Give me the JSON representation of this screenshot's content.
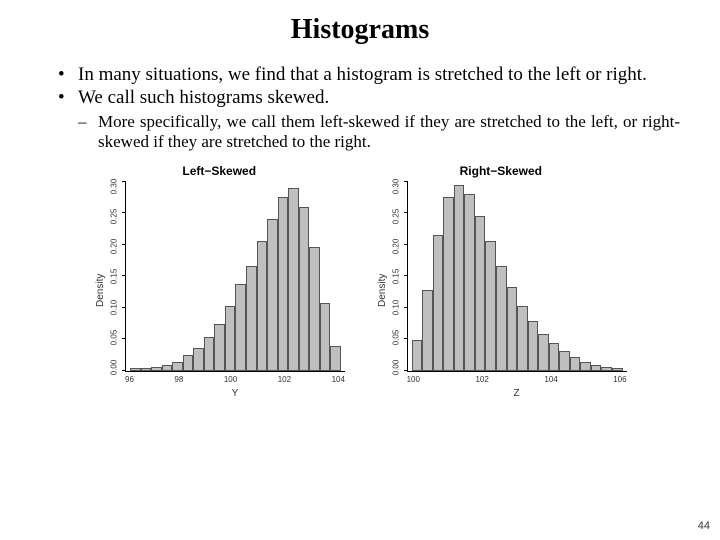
{
  "title": "Histograms",
  "bullets": {
    "b1": "In many situations, we find that a histogram is stretched to the left or right.",
    "b2": "We call such histograms skewed.",
    "sub1": "More specifically, we call them left-skewed if they are stretched to the left, or right-skewed if they are stretched to the right."
  },
  "page_number": "44",
  "chart_left": {
    "type": "histogram",
    "title": "Left−Skewed",
    "xlabel": "Y",
    "ylabel": "Density",
    "ylim": [
      0,
      0.3
    ],
    "ytick_labels": [
      "0.00",
      "0.05",
      "0.10",
      "0.15",
      "0.20",
      "0.25",
      "0.30"
    ],
    "xtick_labels": [
      "96",
      "98",
      "100",
      "102",
      "104"
    ],
    "values": [
      0.004,
      0.005,
      0.007,
      0.01,
      0.015,
      0.025,
      0.037,
      0.055,
      0.075,
      0.105,
      0.14,
      0.17,
      0.21,
      0.245,
      0.28,
      0.295,
      0.265,
      0.2,
      0.11,
      0.04
    ],
    "bar_fill": "#bfbfbf",
    "bar_stroke": "#555555",
    "axis_color": "#000000",
    "label_fontsize": 10,
    "tick_fontsize": 8,
    "title_fontsize": 12,
    "grid": false
  },
  "chart_right": {
    "type": "histogram",
    "title": "Right−Skewed",
    "xlabel": "Z",
    "ylabel": "Density",
    "ylim": [
      0,
      0.3
    ],
    "ytick_labels": [
      "0.00",
      "0.05",
      "0.10",
      "0.15",
      "0.20",
      "0.25",
      "0.30"
    ],
    "xtick_labels": [
      "100",
      "102",
      "104",
      "106"
    ],
    "values": [
      0.05,
      0.13,
      0.22,
      0.28,
      0.3,
      0.285,
      0.25,
      0.21,
      0.17,
      0.135,
      0.105,
      0.08,
      0.06,
      0.045,
      0.032,
      0.022,
      0.014,
      0.009,
      0.006,
      0.004
    ],
    "bar_fill": "#bfbfbf",
    "bar_stroke": "#555555",
    "axis_color": "#000000",
    "label_fontsize": 10,
    "tick_fontsize": 8,
    "title_fontsize": 12,
    "grid": false
  }
}
